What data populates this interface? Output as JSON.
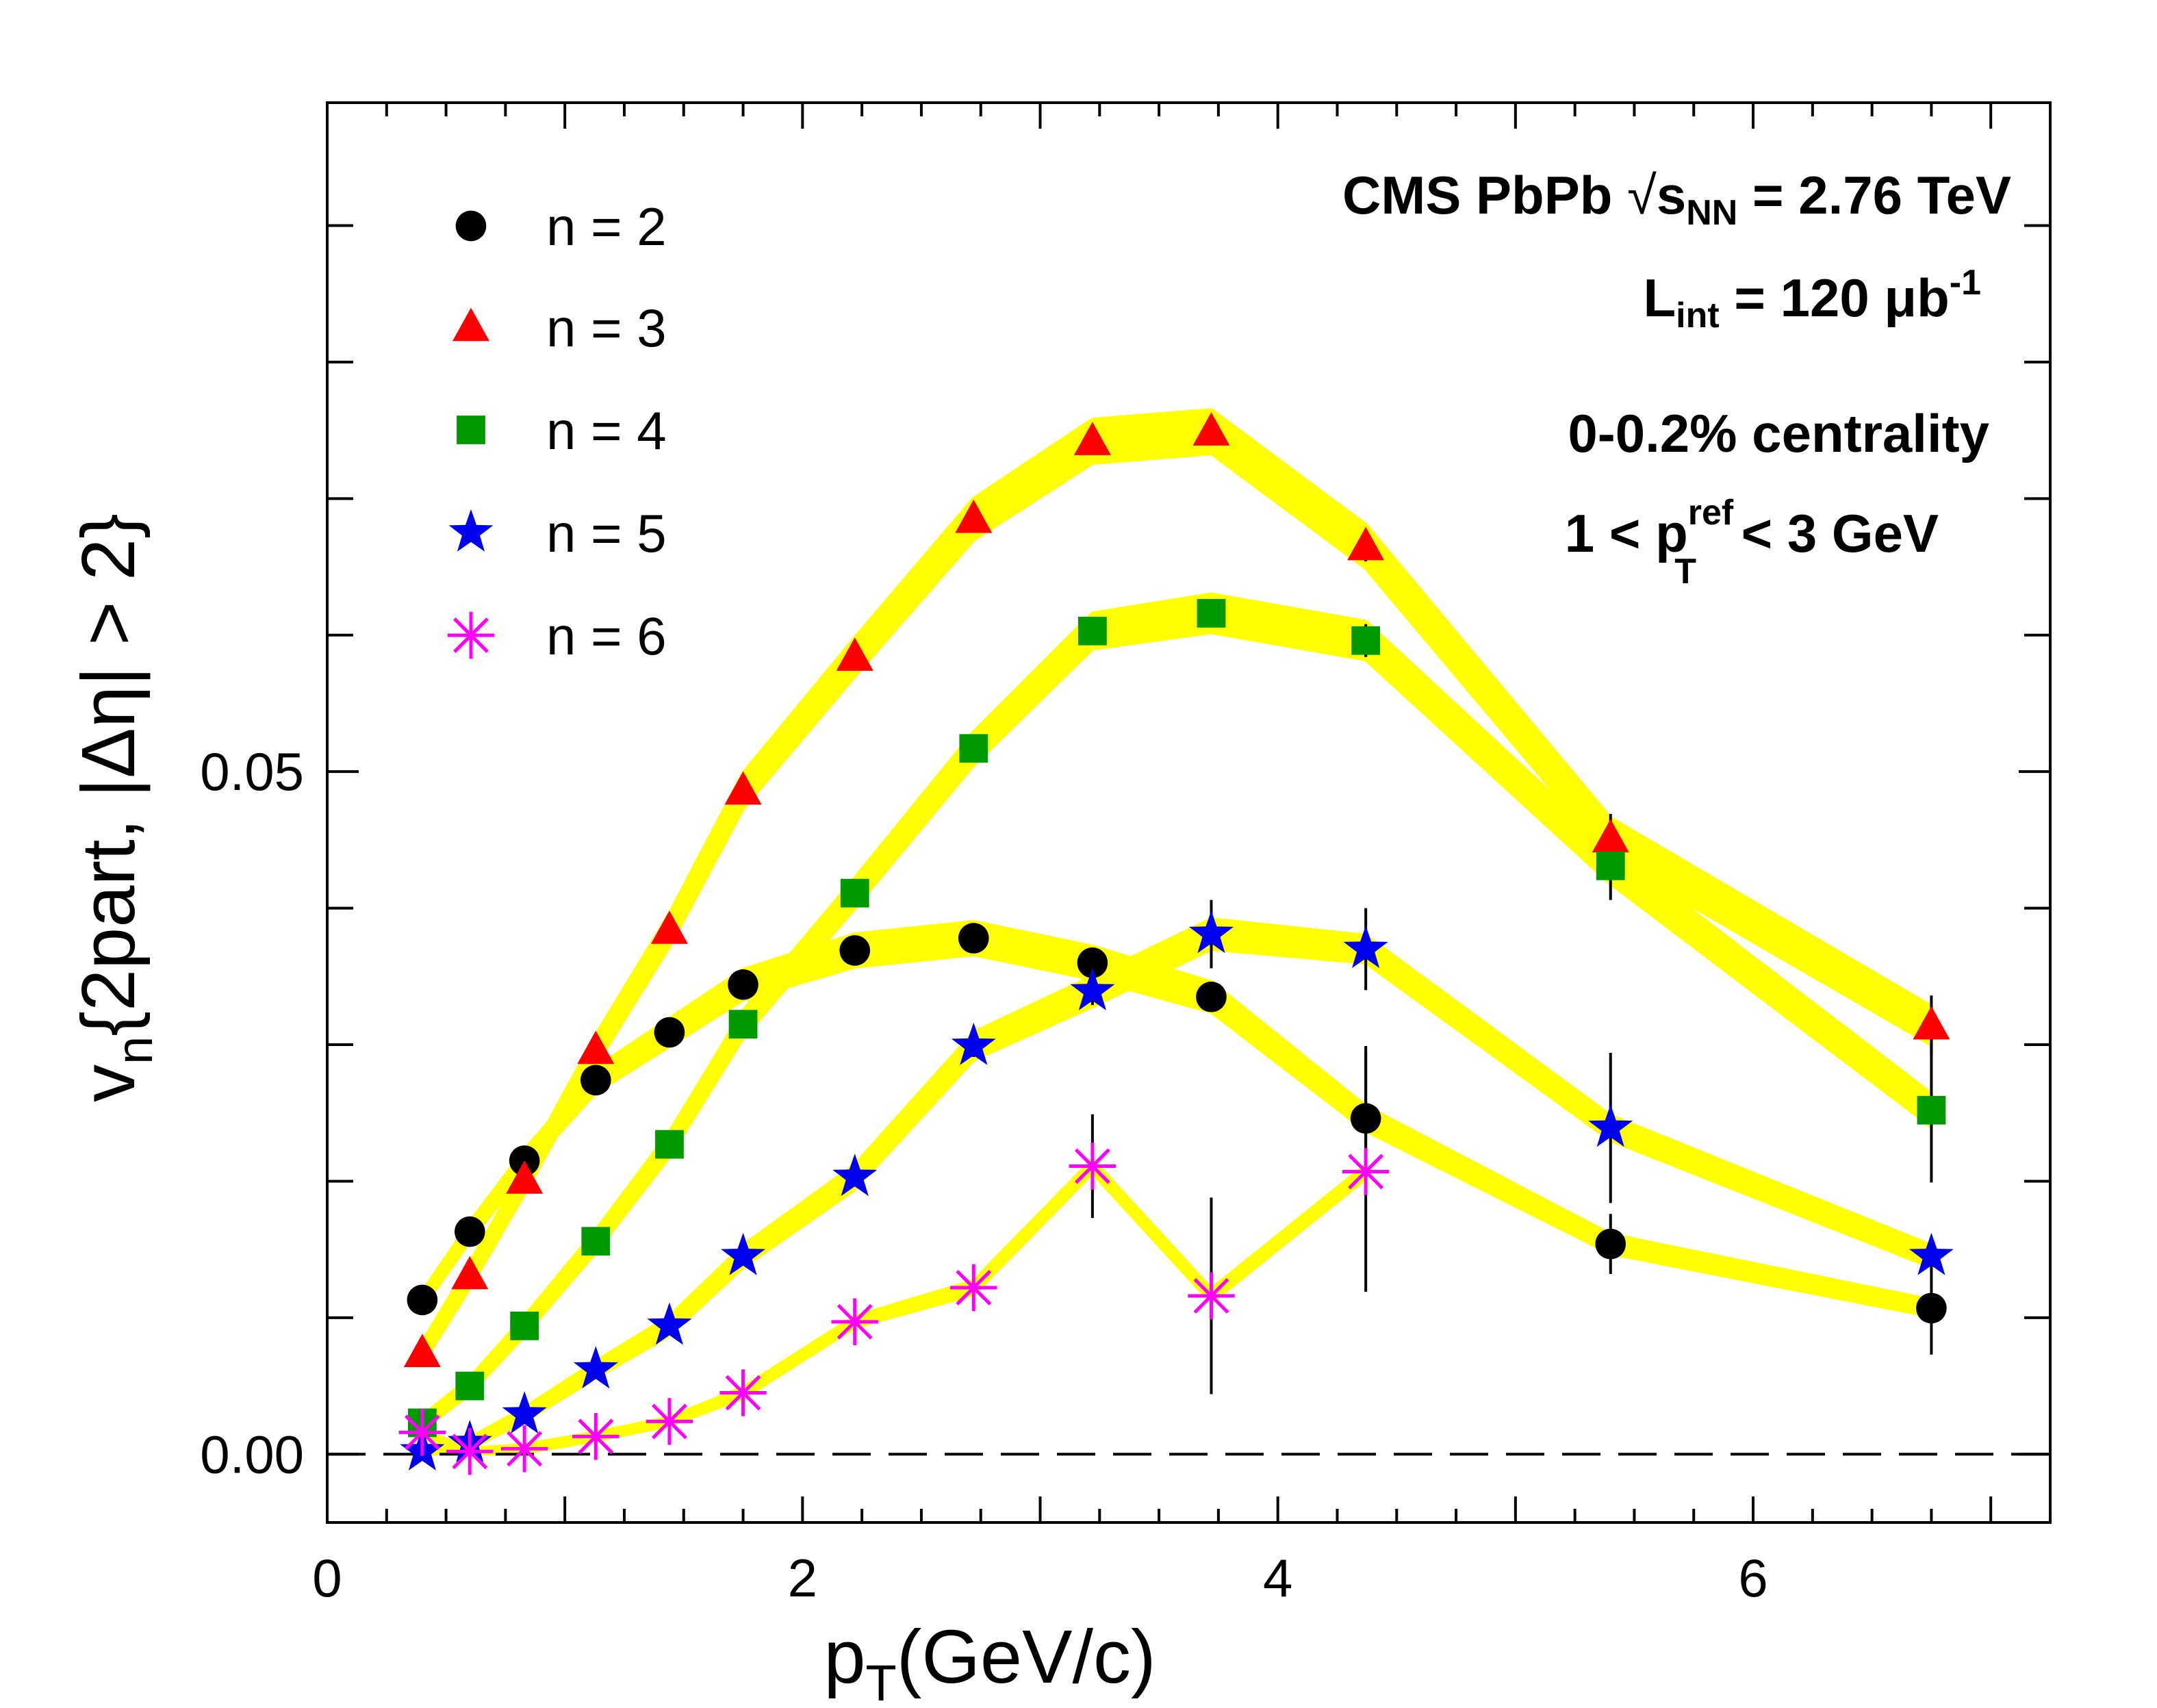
{
  "chart_data": {
    "type": "scatter",
    "xlabel_main": "p",
    "xlabel_sub": "T",
    "xlabel_rest": "(GeV/c)",
    "ylabel_main": "v",
    "ylabel_sub": "n",
    "ylabel_rest": "{2part, |Δη| > 2}",
    "xlim": [
      0,
      7.25
    ],
    "ylim": [
      -0.005,
      0.099
    ],
    "x_ticks": [
      0,
      2,
      4,
      6
    ],
    "x_tick_labels": [
      "0",
      "2",
      "4",
      "6"
    ],
    "y_ticks": [
      0.0,
      0.05
    ],
    "y_tick_labels": [
      "0.00",
      "0.05"
    ],
    "reference_line": 0.0,
    "annotations": {
      "line1_a": "CMS PbPb ",
      "line1_root": "s",
      "line1_root_sub": "NN",
      "line1_b": " = 2.76 TeV",
      "line2_a": "L",
      "line2_sub": "int",
      "line2_b": " = 120 μb",
      "line2_sup": "-1",
      "line3": "0-0.2% centrality",
      "line4_a": "1 < p",
      "line4_sup": "ref",
      "line4_sub": "T",
      "line4_b": " < 3 GeV"
    },
    "series": [
      {
        "name": "n = 2",
        "color": "#000000",
        "marker": "circle",
        "x": [
          0.4,
          0.6,
          0.83,
          1.13,
          1.44,
          1.75,
          2.22,
          2.72,
          3.22,
          3.72,
          4.37,
          5.4,
          6.75
        ],
        "y": [
          0.0113,
          0.0163,
          0.0215,
          0.0274,
          0.0309,
          0.0344,
          0.0369,
          0.0378,
          0.036,
          0.0335,
          0.0246,
          0.0154,
          0.0107
        ],
        "err": [
          0.0005,
          0.0005,
          0.0005,
          0.0005,
          0.0005,
          0.0006,
          0.0006,
          0.0007,
          0.0008,
          0.0009,
          0.0053,
          0.0022,
          0.0034
        ],
        "band": [
          0.0006,
          0.0007,
          0.0008,
          0.0009,
          0.001,
          0.0011,
          0.0012,
          0.0012,
          0.0012,
          0.0011,
          0.0009,
          0.0007,
          0.0006
        ]
      },
      {
        "name": "n = 3",
        "color": "#ff0000",
        "marker": "triangle",
        "x": [
          0.4,
          0.6,
          0.83,
          1.13,
          1.44,
          1.75,
          2.22,
          2.72,
          3.22,
          3.72,
          4.37,
          5.4,
          6.75
        ],
        "y": [
          0.0074,
          0.0131,
          0.0201,
          0.0296,
          0.0384,
          0.0486,
          0.0584,
          0.0685,
          0.0742,
          0.0749,
          0.0665,
          0.0451,
          0.0314
        ],
        "err": [
          0.0005,
          0.0005,
          0.0005,
          0.0005,
          0.0006,
          0.0006,
          0.0007,
          0.0008,
          0.0009,
          0.001,
          0.0011,
          0.0018,
          0.0022
        ],
        "band": [
          0.0008,
          0.0009,
          0.001,
          0.0011,
          0.0012,
          0.0013,
          0.0014,
          0.0015,
          0.0016,
          0.0016,
          0.0016,
          0.0015,
          0.0014
        ]
      },
      {
        "name": "n = 4",
        "color": "#009900",
        "marker": "square",
        "x": [
          0.4,
          0.6,
          0.83,
          1.13,
          1.44,
          1.75,
          2.22,
          2.72,
          3.22,
          3.72,
          4.37,
          5.4,
          6.75
        ],
        "y": [
          0.0023,
          0.005,
          0.0094,
          0.0156,
          0.0227,
          0.0315,
          0.0411,
          0.0517,
          0.0603,
          0.0616,
          0.0596,
          0.0431,
          0.0252
        ],
        "err": [
          0.0004,
          0.0004,
          0.0004,
          0.0005,
          0.0005,
          0.0006,
          0.0007,
          0.0008,
          0.0009,
          0.001,
          0.0012,
          0.0025,
          0.0053
        ],
        "band": [
          0.0005,
          0.0006,
          0.0007,
          0.0008,
          0.0009,
          0.001,
          0.0011,
          0.0012,
          0.0013,
          0.0014,
          0.0014,
          0.0013,
          0.0012
        ]
      },
      {
        "name": "n = 5",
        "color": "#0000ee",
        "marker": "star",
        "x": [
          0.4,
          0.6,
          0.83,
          1.13,
          1.44,
          1.75,
          2.22,
          2.72,
          3.22,
          3.72,
          4.37,
          5.4,
          6.75
        ],
        "y": [
          0.0002,
          0.0008,
          0.0029,
          0.0062,
          0.0094,
          0.0145,
          0.0203,
          0.0299,
          0.0339,
          0.0381,
          0.037,
          0.0239,
          0.0145
        ],
        "err": [
          0.0004,
          0.0004,
          0.0004,
          0.0005,
          0.0005,
          0.0006,
          0.0007,
          0.0008,
          0.001,
          0.0025,
          0.003,
          0.0055,
          0.0
        ],
        "band": [
          0.0003,
          0.0004,
          0.0005,
          0.0006,
          0.0007,
          0.0008,
          0.0009,
          0.001,
          0.0011,
          0.0011,
          0.001,
          0.0009,
          0.0008
        ]
      },
      {
        "name": "n = 6",
        "color": "#ff00ff",
        "marker": "asterisk",
        "x": [
          0.4,
          0.6,
          0.83,
          1.13,
          1.44,
          1.75,
          2.22,
          2.72,
          3.22,
          3.72,
          4.37
        ],
        "y": [
          0.0016,
          0.0002,
          0.0004,
          0.0013,
          0.0024,
          0.0045,
          0.0097,
          0.0122,
          0.0211,
          0.0116,
          0.0207
        ],
        "err": [
          0.0004,
          0.0004,
          0.0005,
          0.0005,
          0.0006,
          0.0007,
          0.0009,
          0.0012,
          0.0038,
          0.0072,
          0.0088
        ],
        "band": [
          0.0002,
          0.0002,
          0.0003,
          0.0003,
          0.0003,
          0.0004,
          0.0004,
          0.0005,
          0.0005,
          0.0005,
          0.0005
        ]
      }
    ]
  }
}
